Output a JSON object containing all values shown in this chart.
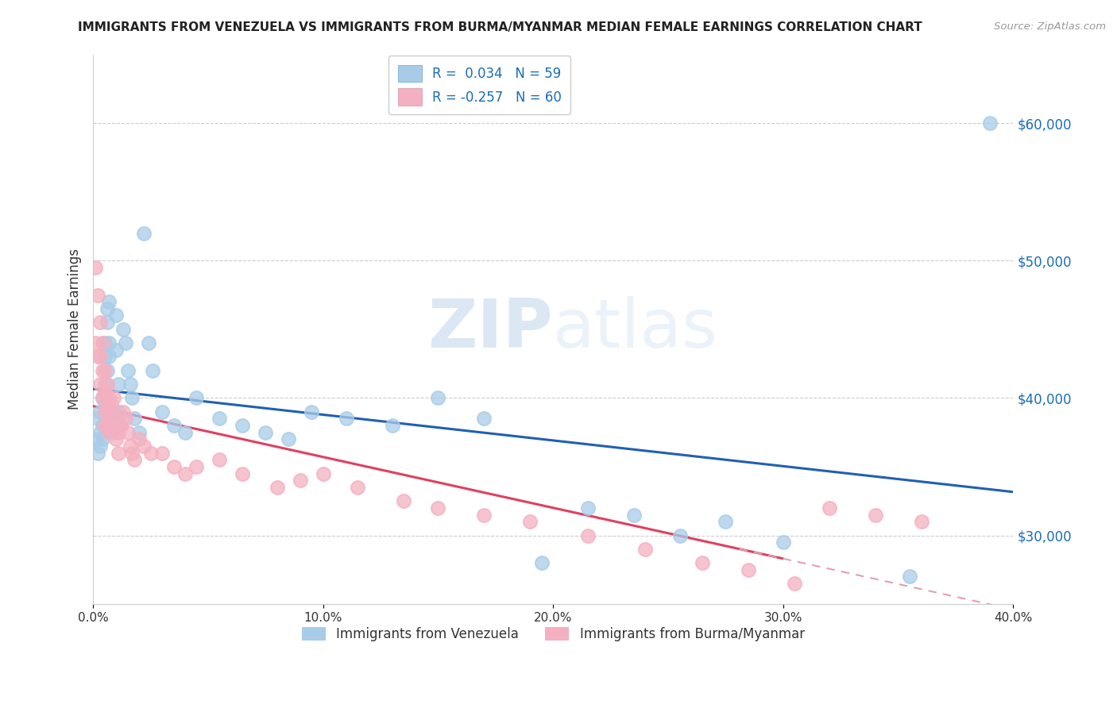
{
  "title": "IMMIGRANTS FROM VENEZUELA VS IMMIGRANTS FROM BURMA/MYANMAR MEDIAN FEMALE EARNINGS CORRELATION CHART",
  "source": "Source: ZipAtlas.com",
  "ylabel": "Median Female Earnings",
  "xlim": [
    0.0,
    0.4
  ],
  "ylim": [
    25000,
    65000
  ],
  "yticks": [
    30000,
    40000,
    50000,
    60000
  ],
  "ytick_labels": [
    "$30,000",
    "$40,000",
    "$50,000",
    "$60,000"
  ],
  "xticks": [
    0.0,
    0.1,
    0.2,
    0.3,
    0.4
  ],
  "xtick_labels": [
    "0.0%",
    "10.0%",
    "20.0%",
    "30.0%",
    "40.0%"
  ],
  "legend_labels": [
    "Immigrants from Venezuela",
    "Immigrants from Burma/Myanmar"
  ],
  "R_venezuela": 0.034,
  "N_venezuela": 59,
  "R_burma": -0.257,
  "N_burma": 60,
  "color_venezuela": "#a8cce8",
  "color_burma": "#f4b0c0",
  "color_venezuela_line": "#2060b0",
  "color_burma_line": "#e04060",
  "color_burma_line_dashed": "#e0a0b0",
  "watermark_zip": "ZIP",
  "watermark_atlas": "atlas",
  "venezuela_x": [
    0.001,
    0.002,
    0.002,
    0.003,
    0.003,
    0.003,
    0.004,
    0.004,
    0.004,
    0.005,
    0.005,
    0.005,
    0.005,
    0.006,
    0.006,
    0.006,
    0.007,
    0.007,
    0.007,
    0.008,
    0.008,
    0.009,
    0.009,
    0.01,
    0.01,
    0.011,
    0.011,
    0.012,
    0.013,
    0.014,
    0.015,
    0.016,
    0.017,
    0.018,
    0.02,
    0.022,
    0.024,
    0.026,
    0.03,
    0.035,
    0.04,
    0.045,
    0.055,
    0.065,
    0.075,
    0.085,
    0.095,
    0.11,
    0.13,
    0.15,
    0.17,
    0.195,
    0.215,
    0.235,
    0.255,
    0.275,
    0.3,
    0.355,
    0.39
  ],
  "venezuela_y": [
    37000,
    38500,
    36000,
    39000,
    37500,
    36500,
    40000,
    38000,
    37000,
    44000,
    43000,
    41000,
    39500,
    46500,
    45500,
    42000,
    47000,
    44000,
    43000,
    38000,
    37500,
    39000,
    38500,
    46000,
    43500,
    41000,
    39000,
    38000,
    45000,
    44000,
    42000,
    41000,
    40000,
    38500,
    37500,
    52000,
    44000,
    42000,
    39000,
    38000,
    37500,
    40000,
    38500,
    38000,
    37500,
    37000,
    39000,
    38500,
    38000,
    40000,
    38500,
    28000,
    32000,
    31500,
    30000,
    31000,
    29500,
    27000,
    60000
  ],
  "burma_x": [
    0.001,
    0.001,
    0.002,
    0.002,
    0.003,
    0.003,
    0.003,
    0.004,
    0.004,
    0.004,
    0.005,
    0.005,
    0.005,
    0.005,
    0.006,
    0.006,
    0.006,
    0.007,
    0.007,
    0.007,
    0.008,
    0.008,
    0.009,
    0.009,
    0.01,
    0.01,
    0.011,
    0.011,
    0.012,
    0.013,
    0.014,
    0.015,
    0.016,
    0.017,
    0.018,
    0.02,
    0.022,
    0.025,
    0.03,
    0.035,
    0.04,
    0.045,
    0.055,
    0.065,
    0.08,
    0.09,
    0.1,
    0.115,
    0.135,
    0.15,
    0.17,
    0.19,
    0.215,
    0.24,
    0.265,
    0.285,
    0.305,
    0.32,
    0.34,
    0.36
  ],
  "burma_y": [
    49500,
    44000,
    47500,
    43000,
    45500,
    43000,
    41000,
    44000,
    42000,
    40000,
    42000,
    40500,
    39000,
    38000,
    41000,
    39500,
    38000,
    40000,
    39000,
    37500,
    39500,
    38000,
    40000,
    38500,
    38000,
    37000,
    37500,
    36000,
    38000,
    39000,
    38500,
    37500,
    36500,
    36000,
    35500,
    37000,
    36500,
    36000,
    36000,
    35000,
    34500,
    35000,
    35500,
    34500,
    33500,
    34000,
    34500,
    33500,
    32500,
    32000,
    31500,
    31000,
    30000,
    29000,
    28000,
    27500,
    26500,
    32000,
    31500,
    31000
  ]
}
